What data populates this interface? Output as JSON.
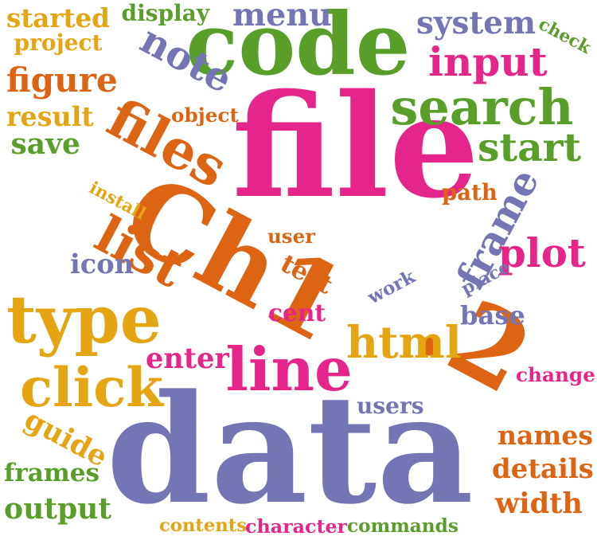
{
  "cloud": {
    "colors": {
      "orange": "#dc6412",
      "magenta": "#e5258a",
      "green": "#5a9e2a",
      "purple": "#7475b5",
      "gold": "#e5a412"
    },
    "words": [
      {
        "text": "Ch1",
        "color": "orange"
      },
      {
        "text": ".2",
        "color": "orange"
      },
      {
        "text": "data",
        "color": "purple"
      },
      {
        "text": "file",
        "color": "magenta"
      },
      {
        "text": "code",
        "color": "green"
      },
      {
        "text": "frame",
        "color": "purple"
      },
      {
        "text": "search",
        "color": "green"
      },
      {
        "text": "files",
        "color": "orange"
      },
      {
        "text": "type",
        "color": "gold"
      },
      {
        "text": "note",
        "color": "purple"
      },
      {
        "text": "list",
        "color": "orange"
      },
      {
        "text": "line",
        "color": "magenta"
      },
      {
        "text": "click",
        "color": "gold"
      },
      {
        "text": "input",
        "color": "magenta"
      },
      {
        "text": "start",
        "color": "green"
      },
      {
        "text": "html",
        "color": "gold"
      },
      {
        "text": "plot",
        "color": "magenta"
      },
      {
        "text": "figure",
        "color": "orange"
      },
      {
        "text": "menu",
        "color": "purple"
      },
      {
        "text": "system",
        "color": "purple"
      },
      {
        "text": "output",
        "color": "green"
      },
      {
        "text": "details",
        "color": "orange"
      },
      {
        "text": "names",
        "color": "orange"
      },
      {
        "text": "width",
        "color": "orange"
      },
      {
        "text": "guide",
        "color": "gold"
      },
      {
        "text": "started",
        "color": "gold"
      },
      {
        "text": "display",
        "color": "green"
      },
      {
        "text": "project",
        "color": "gold"
      },
      {
        "text": "check",
        "color": "green"
      },
      {
        "text": "result",
        "color": "gold"
      },
      {
        "text": "object",
        "color": "orange"
      },
      {
        "text": "save",
        "color": "green"
      },
      {
        "text": "install",
        "color": "gold"
      },
      {
        "text": "path",
        "color": "orange"
      },
      {
        "text": "user",
        "color": "orange"
      },
      {
        "text": "icon",
        "color": "purple"
      },
      {
        "text": "text",
        "color": "orange"
      },
      {
        "text": "work",
        "color": "purple"
      },
      {
        "text": "place",
        "color": "purple"
      },
      {
        "text": "cent",
        "color": "magenta"
      },
      {
        "text": "base",
        "color": "purple"
      },
      {
        "text": "enter",
        "color": "magenta"
      },
      {
        "text": "change",
        "color": "magenta"
      },
      {
        "text": "users",
        "color": "purple"
      },
      {
        "text": "frames",
        "color": "green"
      },
      {
        "text": "contents",
        "color": "gold"
      },
      {
        "text": "character",
        "color": "magenta"
      },
      {
        "text": "commands",
        "color": "green"
      }
    ]
  }
}
